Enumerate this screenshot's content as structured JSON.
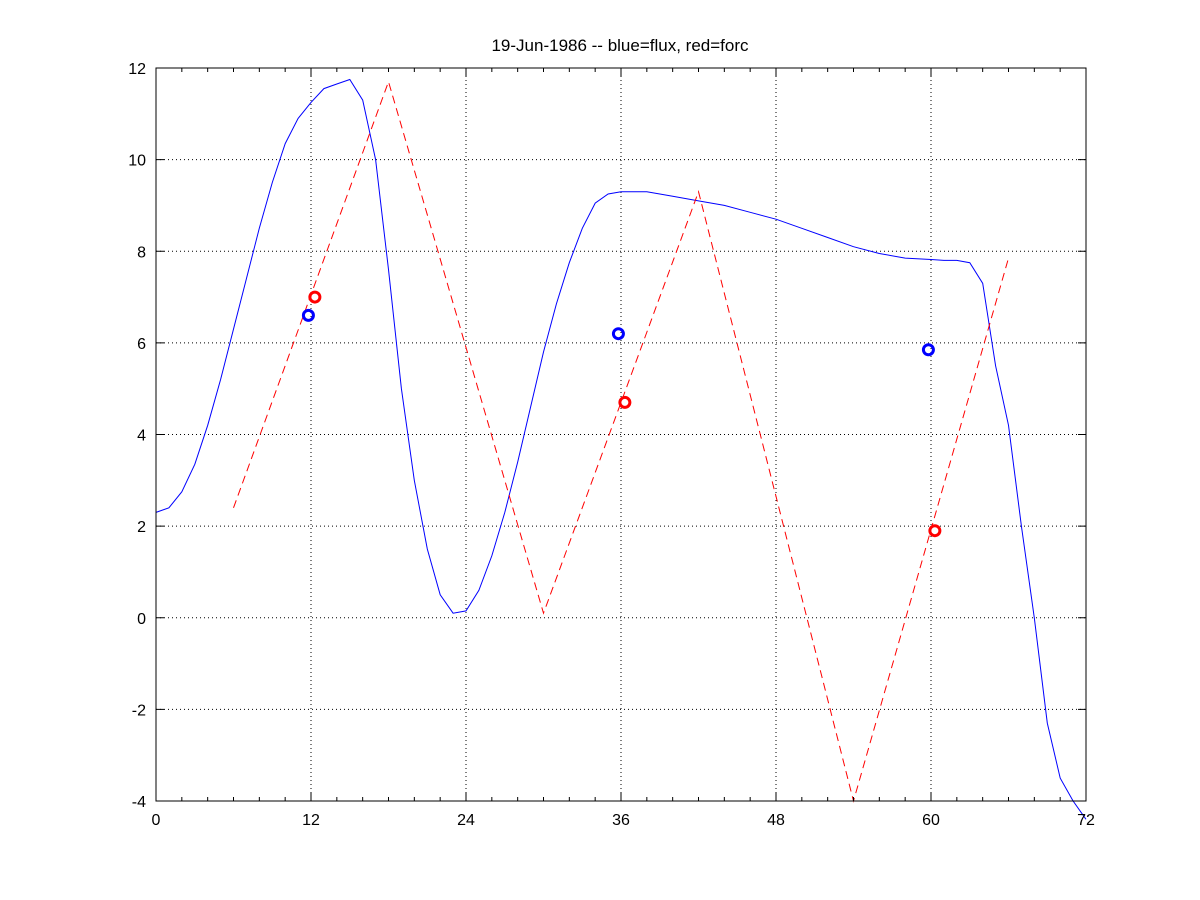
{
  "chart_data": {
    "type": "line",
    "title": "19-Jun-1986 -- blue=flux, red=forc",
    "xlabel": "",
    "ylabel": "",
    "xlim": [
      0,
      72
    ],
    "ylim": [
      -4,
      12
    ],
    "xticks": [
      0,
      12,
      24,
      36,
      48,
      60,
      72
    ],
    "yticks": [
      -4,
      -2,
      0,
      2,
      4,
      6,
      8,
      10,
      12
    ],
    "xtick_labels": [
      "0",
      "12",
      "24",
      "36",
      "48",
      "60",
      "72"
    ],
    "ytick_labels": [
      "-4",
      "-2",
      "0",
      "2",
      "4",
      "6",
      "8",
      "10",
      "12"
    ],
    "grid": true,
    "series": [
      {
        "color": "#0000ff",
        "style": "solid",
        "x": [
          0,
          1,
          2,
          3,
          4,
          5,
          6,
          7,
          8,
          9,
          10,
          11,
          12,
          13,
          14,
          15,
          16,
          17,
          18,
          19,
          20,
          21,
          22,
          23,
          24,
          25,
          26,
          27,
          28,
          29,
          30,
          31,
          32,
          33,
          34,
          35,
          36,
          37,
          38,
          39,
          40,
          42,
          44,
          46,
          48,
          50,
          52,
          54,
          56,
          58,
          60,
          61,
          62,
          63,
          64,
          65,
          66,
          67,
          68,
          69,
          70,
          71,
          72
        ],
        "y": [
          2.3,
          2.4,
          2.75,
          3.35,
          4.2,
          5.2,
          6.3,
          7.4,
          8.5,
          9.5,
          10.35,
          10.9,
          11.25,
          11.55,
          11.65,
          11.75,
          11.3,
          10.0,
          7.6,
          5.0,
          3.0,
          1.5,
          0.5,
          0.1,
          0.15,
          0.6,
          1.35,
          2.3,
          3.4,
          4.6,
          5.8,
          6.85,
          7.75,
          8.5,
          9.05,
          9.25,
          9.3,
          9.3,
          9.3,
          9.25,
          9.2,
          9.1,
          9.0,
          8.85,
          8.7,
          8.5,
          8.3,
          8.1,
          7.95,
          7.85,
          7.82,
          7.8,
          7.8,
          7.75,
          7.3,
          5.5,
          4.2,
          2.0,
          0.0,
          -2.3,
          -3.5,
          -4.0,
          -4.4
        ]
      },
      {
        "color": "#ff0000",
        "style": "dashed",
        "x": [
          6,
          18,
          30,
          42,
          54,
          66
        ],
        "y": [
          2.4,
          11.7,
          0.1,
          9.3,
          -4.0,
          7.85
        ]
      }
    ],
    "markers": [
      {
        "color": "#0000ff",
        "x": 11.8,
        "y": 6.6
      },
      {
        "color": "#ff0000",
        "x": 12.3,
        "y": 7.0
      },
      {
        "color": "#0000ff",
        "x": 35.8,
        "y": 6.2
      },
      {
        "color": "#ff0000",
        "x": 36.3,
        "y": 4.7
      },
      {
        "color": "#0000ff",
        "x": 59.8,
        "y": 5.85
      },
      {
        "color": "#ff0000",
        "x": 60.3,
        "y": 1.9
      }
    ]
  }
}
